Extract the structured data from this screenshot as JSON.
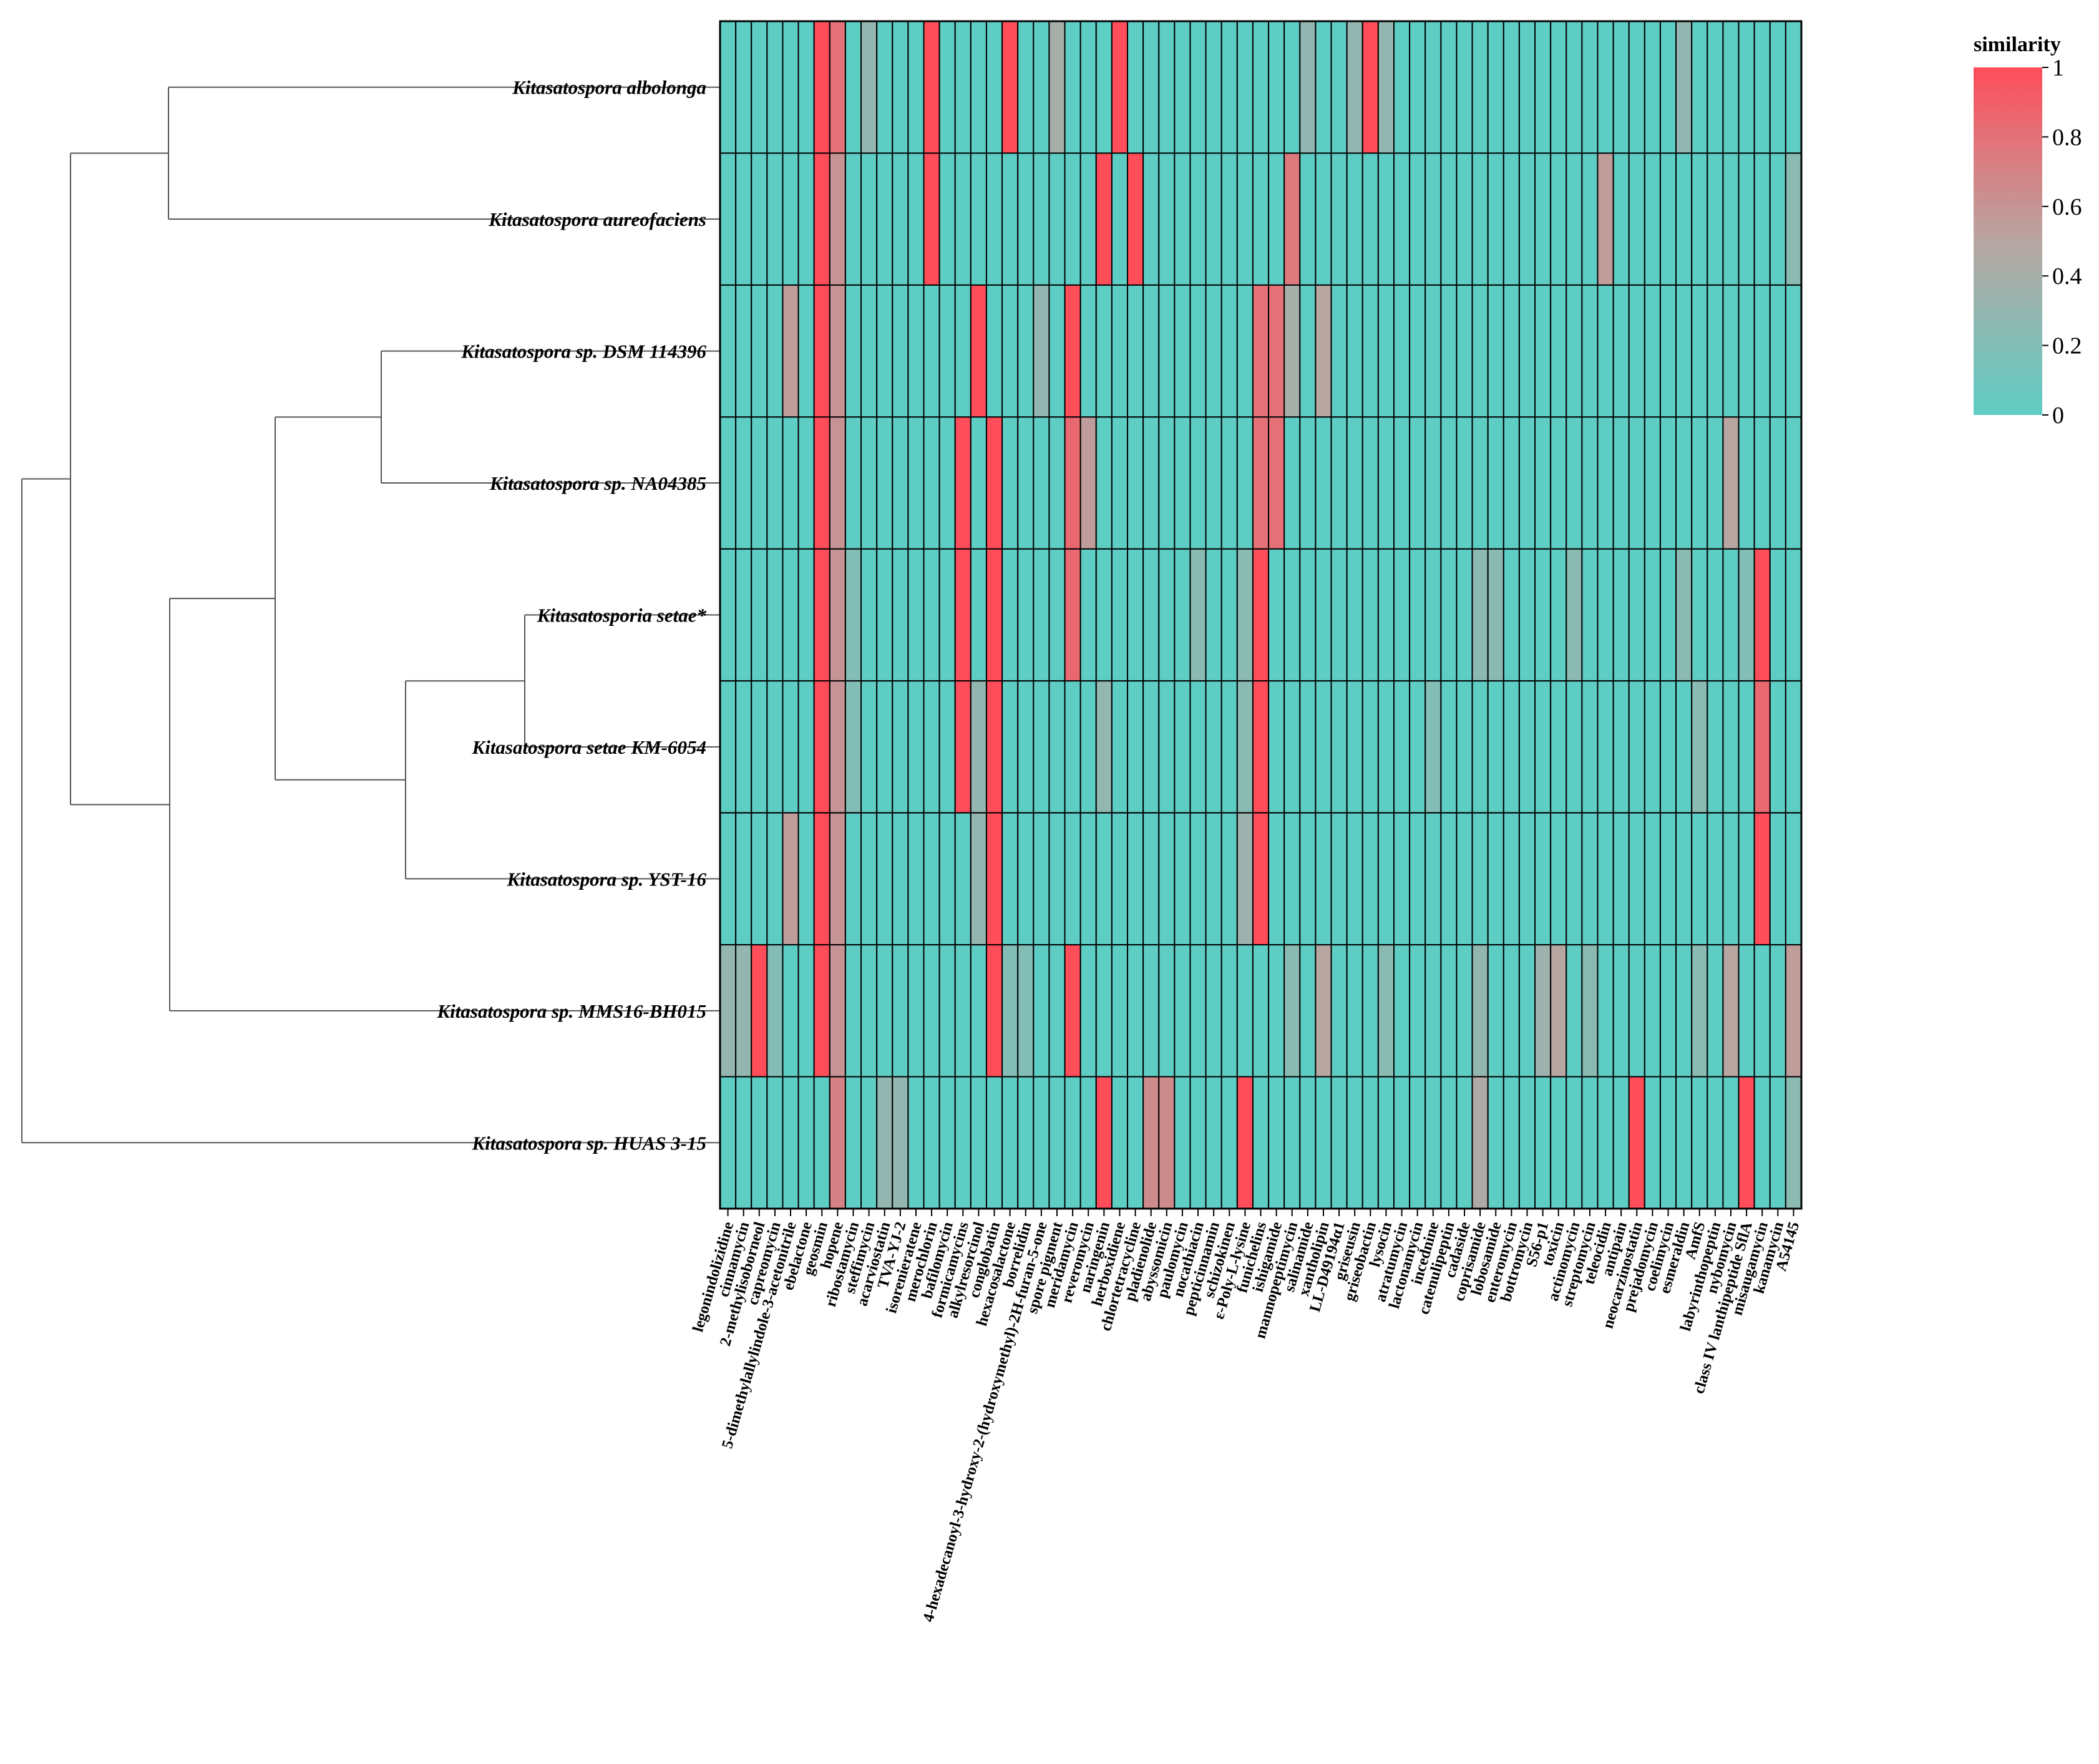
{
  "chart_data": {
    "type": "heatmap",
    "legend": {
      "title": "similarity",
      "ticks": [
        "0",
        "0.2",
        "0.4",
        "0.6",
        "0.8",
        "1"
      ],
      "range": [
        0,
        1
      ],
      "low_color": "#5ecdc4",
      "high_color": "#ff4d5a"
    },
    "rows": [
      "Kitasatospora albolonga",
      "Kitasatospora aureofaciens",
      "Kitasatospora sp. DSM 114396",
      "Kitasatospora sp. NA04385",
      "Kitasatosporia setae*",
      "Kitasatospora setae KM-6054",
      "Kitasatospora sp. YST-16",
      "Kitasatospora sp. MMS16-BH015",
      "Kitasatospora sp. HUAS 3-15"
    ],
    "columns": [
      "legonindolizidine",
      "cinnamycin",
      "2-methylisoborneol",
      "capreomycin",
      "5-dimethylallylindole-3-acetonitrile",
      "ebelactone",
      "geosmin",
      "hopene",
      "ribostamycin",
      "steffimycin",
      "acarviostatin",
      "TVA-YJ-2",
      "isorenieratene",
      "merochlorin",
      "bafilomycin",
      "formicamycins",
      "alkylresorcinol",
      "conglobatin",
      "hexacosalactone",
      "borrelidin",
      "4-hexadecanoyl-3-hydroxy-2-(hydroxymethyl)-2H-furan-5-one",
      "spore pigment",
      "meridamycin",
      "reveromycin",
      "naringenin",
      "herboxidiene",
      "chlortetracycline",
      "pladienolide",
      "abyssomicin",
      "paulomycin",
      "nocathiacin",
      "pepticinnamin",
      "schizokinen",
      "ε-Poly-L-lysine",
      "funichelins",
      "ishigamide",
      "mannopeptimycin",
      "salinamide",
      "xantholipin",
      "LL-D49194α1",
      "griseusin",
      "griseobactin",
      "lysocin",
      "atratumycin",
      "lactonamycin",
      "incednine",
      "catenulipeptin",
      "cadaside",
      "coprisamide",
      "lobosamide",
      "enteromycin",
      "bottromycin",
      "S56-p1",
      "toxicin",
      "actinomycin",
      "streptomycin",
      "teleocidin",
      "antipain",
      "neocarzinostatin",
      "prejadomycin",
      "coelimycin",
      "esmeraldin",
      "AmfS",
      "labyrinthopeptin",
      "nybomycin",
      "class IV lanthipeptide SflA",
      "misaugamycin",
      "kanamycin",
      "A54145"
    ],
    "values": [
      [
        0,
        0,
        0,
        0,
        0,
        0,
        1,
        0.8,
        0,
        0.3,
        0,
        0,
        0,
        1,
        0,
        0,
        0,
        0,
        1,
        0,
        0,
        0.4,
        0,
        0,
        0,
        1,
        0,
        0,
        0,
        0,
        0,
        0,
        0,
        0,
        0,
        0,
        0,
        0.3,
        0,
        0,
        0.3,
        1,
        0.3,
        0,
        0,
        0,
        0,
        0,
        0,
        0,
        0,
        0,
        0,
        0,
        0,
        0,
        0,
        0,
        0,
        0,
        0,
        0.3,
        0,
        0,
        0,
        0,
        0,
        0,
        0
      ],
      [
        0,
        0,
        0,
        0,
        0,
        0,
        1,
        0.6,
        0,
        0,
        0,
        0,
        0,
        1,
        0,
        0,
        0,
        0,
        0,
        0,
        0,
        0,
        0,
        0,
        1,
        0,
        1,
        0,
        0,
        0,
        0,
        0,
        0,
        0,
        0,
        0,
        0.75,
        0,
        0,
        0,
        0,
        0,
        0,
        0,
        0,
        0,
        0,
        0,
        0,
        0,
        0,
        0,
        0,
        0,
        0,
        0,
        0.55,
        0,
        0,
        0,
        0,
        0,
        0,
        0,
        0,
        0,
        0,
        0,
        0.25
      ],
      [
        0,
        0,
        0,
        0,
        0.55,
        0,
        1,
        0.6,
        0,
        0,
        0,
        0,
        0,
        0,
        0,
        0,
        1,
        0,
        0,
        0,
        0.3,
        0,
        1,
        0,
        0,
        0,
        0,
        0,
        0,
        0,
        0,
        0,
        0,
        0,
        0.8,
        0.8,
        0.4,
        0,
        0.5,
        0,
        0,
        0,
        0,
        0,
        0,
        0,
        0,
        0,
        0,
        0,
        0,
        0,
        0,
        0,
        0,
        0,
        0,
        0,
        0,
        0,
        0,
        0,
        0,
        0,
        0,
        0,
        0,
        0,
        0
      ],
      [
        0,
        0,
        0,
        0,
        0,
        0,
        1,
        0.6,
        0,
        0,
        0,
        0,
        0,
        0,
        0,
        1,
        0,
        1,
        0,
        0,
        0,
        0,
        0.85,
        0.55,
        0,
        0,
        0,
        0,
        0,
        0,
        0,
        0,
        0,
        0,
        0.8,
        0.8,
        0,
        0,
        0,
        0,
        0,
        0,
        0,
        0,
        0,
        0,
        0,
        0,
        0,
        0,
        0,
        0,
        0,
        0,
        0,
        0,
        0,
        0,
        0,
        0,
        0,
        0,
        0,
        0,
        0.5,
        0,
        0,
        0,
        0
      ],
      [
        0,
        0,
        0,
        0,
        0,
        0,
        1,
        0.6,
        0.2,
        0,
        0,
        0,
        0,
        0,
        0,
        1,
        0,
        1,
        0,
        0,
        0,
        0,
        0.85,
        0,
        0,
        0,
        0,
        0,
        0,
        0,
        0.25,
        0,
        0,
        0.25,
        1,
        0,
        0,
        0,
        0,
        0,
        0,
        0,
        0,
        0,
        0,
        0,
        0,
        0,
        0.25,
        0.25,
        0,
        0,
        0,
        0,
        0.25,
        0,
        0,
        0,
        0,
        0,
        0,
        0.25,
        0,
        0,
        0,
        0.2,
        1,
        0,
        0
      ],
      [
        0,
        0,
        0,
        0,
        0,
        0,
        1,
        0.6,
        0.2,
        0,
        0,
        0,
        0,
        0,
        0,
        1,
        0.3,
        1,
        0,
        0,
        0,
        0,
        0,
        0,
        0.3,
        0,
        0,
        0,
        0,
        0,
        0,
        0,
        0,
        0.25,
        1,
        0,
        0,
        0,
        0,
        0,
        0,
        0,
        0,
        0,
        0,
        0.2,
        0,
        0,
        0,
        0,
        0,
        0,
        0,
        0,
        0,
        0,
        0,
        0,
        0,
        0,
        0,
        0,
        0.25,
        0,
        0,
        0,
        0.85,
        0,
        0
      ],
      [
        0,
        0,
        0,
        0,
        0.55,
        0,
        1,
        0.6,
        0,
        0,
        0,
        0,
        0,
        0,
        0,
        0,
        0.3,
        1,
        0,
        0,
        0,
        0,
        0,
        0,
        0,
        0,
        0,
        0,
        0,
        0,
        0,
        0,
        0,
        0.35,
        1,
        0,
        0,
        0,
        0,
        0,
        0,
        0,
        0,
        0,
        0,
        0,
        0,
        0,
        0,
        0,
        0,
        0,
        0,
        0,
        0,
        0,
        0,
        0,
        0,
        0,
        0,
        0,
        0,
        0,
        0,
        0,
        1,
        0,
        0
      ],
      [
        0.3,
        0.3,
        1,
        0.2,
        0,
        0,
        1,
        0.6,
        0,
        0,
        0,
        0,
        0,
        0,
        0,
        0,
        0,
        1,
        0.2,
        0.2,
        0,
        0,
        1,
        0,
        0,
        0,
        0,
        0,
        0,
        0,
        0,
        0,
        0,
        0,
        0,
        0,
        0.25,
        0,
        0.5,
        0,
        0,
        0,
        0.25,
        0,
        0,
        0,
        0,
        0,
        0.3,
        0,
        0,
        0,
        0.35,
        0.5,
        0,
        0.25,
        0,
        0,
        0,
        0,
        0,
        0,
        0.25,
        0,
        0.5,
        0,
        0,
        0,
        0.55
      ],
      [
        0,
        0,
        0,
        0,
        0,
        0,
        0,
        0.7,
        0,
        0,
        0.3,
        0.3,
        0,
        0,
        0,
        0,
        0,
        0,
        0,
        0,
        0,
        0,
        0,
        0,
        1,
        0,
        0,
        0.65,
        0.65,
        0,
        0,
        0,
        0,
        1,
        0,
        0,
        0,
        0,
        0,
        0,
        0,
        0,
        0,
        0,
        0,
        0,
        0,
        0,
        0.45,
        0,
        0,
        0,
        0,
        0,
        0,
        0,
        0,
        0,
        1,
        0,
        0,
        0,
        0,
        0,
        0,
        1,
        0,
        0,
        0.25
      ]
    ],
    "dendrogram_order": [
      0,
      1,
      2,
      3,
      4,
      5,
      6,
      7,
      8
    ]
  }
}
